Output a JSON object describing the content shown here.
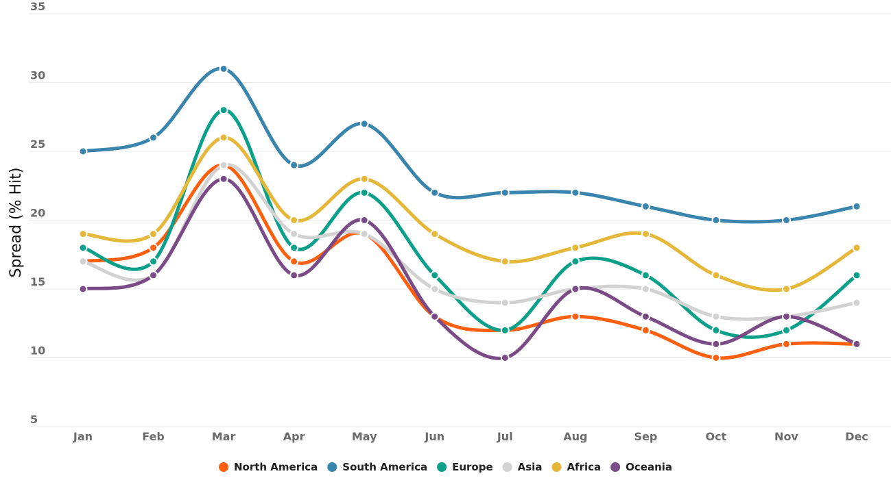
{
  "chart_data": {
    "type": "line",
    "title": "",
    "xlabel": "",
    "ylabel": "Spread (% Hit)",
    "categories": [
      "Jan",
      "Feb",
      "Mar",
      "Apr",
      "May",
      "Jun",
      "Jul",
      "Aug",
      "Sep",
      "Oct",
      "Nov",
      "Dec"
    ],
    "yticks": [
      "5",
      "10",
      "15",
      "20",
      "25",
      "30",
      "35"
    ],
    "ylim": [
      5,
      35
    ],
    "grid": true,
    "legend_position": "bottom",
    "smooth": true,
    "series": [
      {
        "name": "North America",
        "color": "#FF6010",
        "values": [
          17,
          18,
          24,
          17,
          19,
          13,
          12,
          13,
          12,
          10,
          11,
          11
        ]
      },
      {
        "name": "South America",
        "color": "#3A85AE",
        "values": [
          25,
          26,
          31,
          24,
          27,
          22,
          22,
          22,
          21,
          20,
          20,
          21
        ]
      },
      {
        "name": "Europe",
        "color": "#0AA08A",
        "values": [
          18,
          17,
          28,
          18,
          22,
          16,
          12,
          17,
          16,
          12,
          12,
          16
        ]
      },
      {
        "name": "Asia",
        "color": "#D2D2D2",
        "values": [
          17,
          16,
          24,
          19,
          19,
          15,
          14,
          15,
          15,
          13,
          13,
          14
        ]
      },
      {
        "name": "Africa",
        "color": "#E5B83A",
        "values": [
          19,
          19,
          26,
          20,
          23,
          19,
          17,
          18,
          19,
          16,
          15,
          18
        ]
      },
      {
        "name": "Oceania",
        "color": "#7B4B87",
        "values": [
          15,
          16,
          23,
          16,
          20,
          13,
          10,
          15,
          13,
          11,
          13,
          11
        ]
      }
    ]
  }
}
